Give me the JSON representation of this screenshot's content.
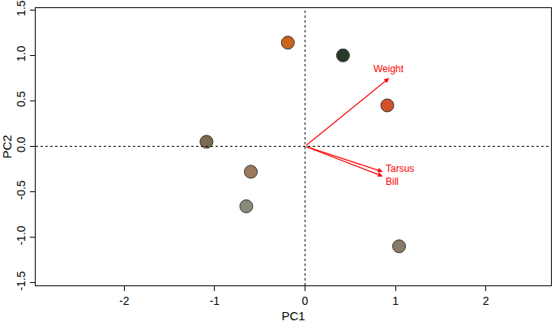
{
  "chart_data": {
    "type": "scatter",
    "x_label": "PC1",
    "y_label": "PC2",
    "xlim": [
      -2.98,
      2.72
    ],
    "ylim": [
      -1.53,
      1.52
    ],
    "xticks": [
      -2,
      -1,
      0,
      1,
      2
    ],
    "yticks": [
      {
        "value": -1.5,
        "label": "-1.5"
      },
      {
        "value": -1.0,
        "label": "-1.0"
      },
      {
        "value": -0.5,
        "label": "-0.5"
      },
      {
        "value": 0,
        "label": "0.0"
      },
      {
        "value": 0.5,
        "label": "0.5"
      },
      {
        "value": 1.0,
        "label": "1.0"
      },
      {
        "value": 1.5,
        "label": "1.5"
      }
    ],
    "grid": false,
    "series": [
      {
        "type": "scatter",
        "marker": "circle",
        "x": [
          -0.19,
          0.42,
          0.91,
          -1.09,
          -0.6,
          -0.65,
          1.04
        ],
        "y": [
          1.14,
          1.0,
          0.45,
          0.05,
          -0.28,
          -0.66,
          -1.1
        ],
        "colors": [
          "#c8641e",
          "#2a3a2a",
          "#d0502a",
          "#7a6a50",
          "#9a7a5a",
          "#8a8a7a",
          "#8a7a6a"
        ]
      },
      {
        "type": "arrow",
        "color": "#ff0000",
        "labels": [
          "Weight",
          "Tarsus",
          "Bill"
        ],
        "x": [
          0.93,
          0.86,
          0.86
        ],
        "y": [
          0.75,
          -0.28,
          -0.33
        ]
      }
    ]
  }
}
